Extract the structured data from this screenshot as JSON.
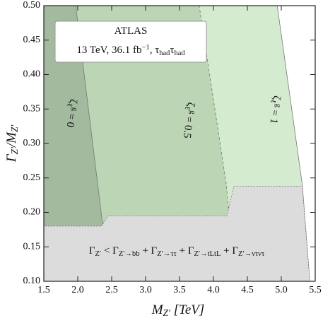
{
  "chart_data": {
    "type": "region",
    "xlabel": [
      {
        "t": "M"
      },
      {
        "t": "Z′",
        "pos": "sub"
      },
      {
        "t": " [TeV]"
      }
    ],
    "ylabel": [
      {
        "t": "Γ"
      },
      {
        "t": "Z′",
        "pos": "sub"
      },
      {
        "t": "/M"
      },
      {
        "t": "Z′",
        "pos": "sub"
      }
    ],
    "xlim": [
      1.5,
      5.5
    ],
    "ylim": [
      0.1,
      0.5
    ],
    "xticks": [
      1.5,
      {
        "value": 2,
        "label": "2.0"
      },
      2.5,
      {
        "value": 3,
        "label": "3.0"
      },
      3.5,
      {
        "value": 4,
        "label": "4.0"
      },
      4.5,
      {
        "value": 5,
        "label": "5.0"
      },
      5.5
    ],
    "yticks": [
      {
        "value": 0.1,
        "label": "0.10"
      },
      0.15,
      {
        "value": 0.2,
        "label": "0.20"
      },
      0.25,
      {
        "value": 0.3,
        "label": "0.30"
      },
      0.35,
      {
        "value": 0.4,
        "label": "0.40"
      },
      0.45,
      {
        "value": 0.5,
        "label": "0.50"
      }
    ],
    "series": [
      {
        "label": [
          {
            "t": "ζ"
          },
          {
            "t": "ℓ",
            "pos": "sub"
          },
          {
            "t": "g",
            "pos": "sup"
          },
          {
            "t": " = 1"
          }
        ],
        "color": "#d5ebcf",
        "x": [
          1.5,
          1.5,
          4.94,
          5.31,
          5.42
        ],
        "y": [
          0.1,
          0.5,
          0.5,
          0.24,
          0.1
        ]
      },
      {
        "label": [
          {
            "t": "ζ"
          },
          {
            "t": "ℓ",
            "pos": "sub"
          },
          {
            "t": "g",
            "pos": "sup"
          },
          {
            "t": " = 0.5"
          }
        ],
        "color": "#bcd5b4",
        "x": [
          1.5,
          1.5,
          3.79,
          4.19,
          4.32
        ],
        "y": [
          0.1,
          0.5,
          0.5,
          0.24,
          0.1
        ]
      },
      {
        "label": [
          {
            "t": "ζ"
          },
          {
            "t": "ℓ",
            "pos": "sub"
          },
          {
            "t": "g",
            "pos": "sup"
          },
          {
            "t": " = 0"
          }
        ],
        "color": "#a3ba9f",
        "x": [
          1.5,
          1.5,
          1.97,
          2.37,
          2.43
        ],
        "y": [
          0.1,
          0.5,
          0.5,
          0.18,
          0.1
        ]
      },
      {
        "label": [
          {
            "t": "Γ"
          },
          {
            "t": "Z′",
            "pos": "sub"
          },
          {
            "t": " < Γ"
          },
          {
            "t": "Z′→bb",
            "pos": "sub"
          },
          {
            "t": " + Γ"
          },
          {
            "t": "Z′→ττ",
            "pos": "sub"
          },
          {
            "t": " + Γ"
          },
          {
            "t": "Z′→tLtL",
            "pos": "sub"
          },
          {
            "t": " + Γ"
          },
          {
            "t": "Z′→ντντ",
            "pos": "sub"
          }
        ],
        "color": "#dcdcdc",
        "x": [
          1.5,
          1.5,
          2.35,
          2.45,
          4.2,
          4.3,
          5.31,
          5.42
        ],
        "y": [
          0.1,
          0.18,
          0.18,
          0.195,
          0.195,
          0.238,
          0.238,
          0.1
        ]
      }
    ],
    "annotation": [
      [
        {
          "t": "ATLAS"
        }
      ],
      [
        {
          "t": "13 TeV, 36.1 fb"
        },
        {
          "t": "−1",
          "pos": "sup"
        },
        {
          "t": ", τ"
        },
        {
          "t": "had",
          "pos": "sub"
        },
        {
          "t": "τ"
        },
        {
          "t": "had",
          "pos": "sub"
        }
      ]
    ]
  }
}
